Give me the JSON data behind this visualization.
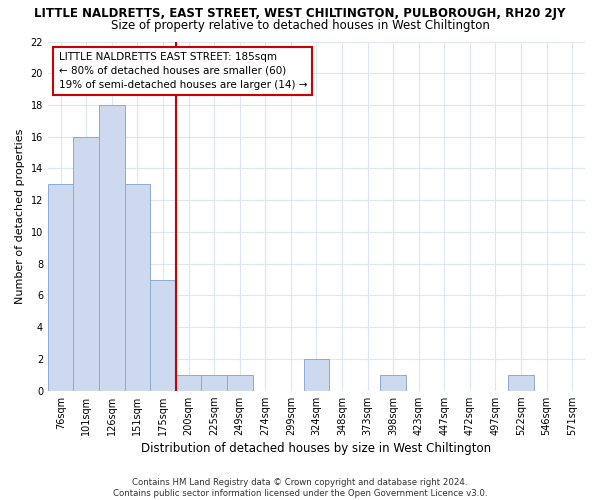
{
  "title": "LITTLE NALDRETTS, EAST STREET, WEST CHILTINGTON, PULBOROUGH, RH20 2JY",
  "subtitle": "Size of property relative to detached houses in West Chiltington",
  "xlabel": "Distribution of detached houses by size in West Chiltington",
  "ylabel": "Number of detached properties",
  "categories": [
    "76sqm",
    "101sqm",
    "126sqm",
    "151sqm",
    "175sqm",
    "200sqm",
    "225sqm",
    "249sqm",
    "274sqm",
    "299sqm",
    "324sqm",
    "348sqm",
    "373sqm",
    "398sqm",
    "423sqm",
    "447sqm",
    "472sqm",
    "497sqm",
    "522sqm",
    "546sqm",
    "571sqm"
  ],
  "values": [
    13,
    16,
    18,
    13,
    7,
    1,
    1,
    1,
    0,
    0,
    2,
    0,
    0,
    1,
    0,
    0,
    0,
    0,
    1,
    0,
    0
  ],
  "bar_color": "#ccd9ee",
  "bar_edge_color": "#8aaad4",
  "vline_color": "#cc0000",
  "annotation_text": "LITTLE NALDRETTS EAST STREET: 185sqm\n← 80% of detached houses are smaller (60)\n19% of semi-detached houses are larger (14) →",
  "annotation_box_color": "#cc0000",
  "ylim": [
    0,
    22
  ],
  "yticks": [
    0,
    2,
    4,
    6,
    8,
    10,
    12,
    14,
    16,
    18,
    20,
    22
  ],
  "footer": "Contains HM Land Registry data © Crown copyright and database right 2024.\nContains public sector information licensed under the Open Government Licence v3.0.",
  "bg_color": "#ffffff",
  "plot_bg_color": "#ffffff",
  "grid_color": "#dce6f5",
  "title_fontsize": 8.5,
  "subtitle_fontsize": 8.5,
  "tick_fontsize": 7,
  "ylabel_fontsize": 8,
  "xlabel_fontsize": 8.5
}
